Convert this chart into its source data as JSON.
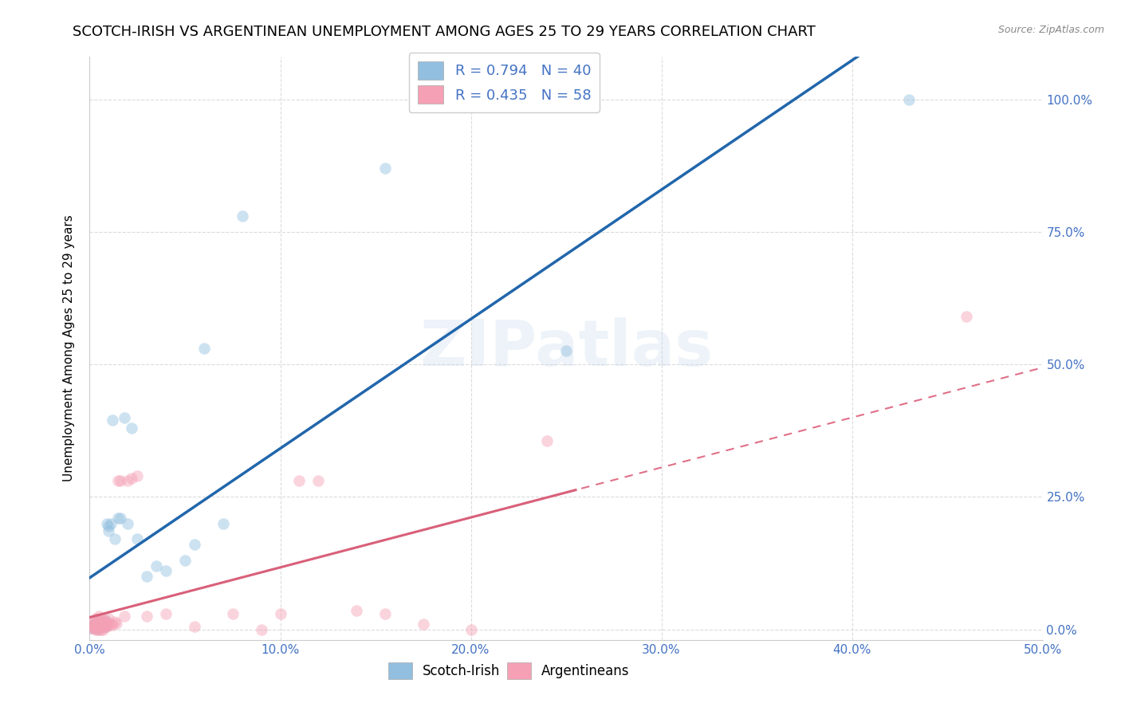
{
  "title": "SCOTCH-IRISH VS ARGENTINEAN UNEMPLOYMENT AMONG AGES 25 TO 29 YEARS CORRELATION CHART",
  "source": "Source: ZipAtlas.com",
  "ylabel": "Unemployment Among Ages 25 to 29 years",
  "xlim": [
    0.0,
    0.5
  ],
  "ylim": [
    -0.02,
    1.08
  ],
  "xticks": [
    0.0,
    0.1,
    0.2,
    0.3,
    0.4,
    0.5
  ],
  "xticklabels": [
    "0.0%",
    "10.0%",
    "20.0%",
    "30.0%",
    "40.0%",
    "50.0%"
  ],
  "yticks": [
    0.0,
    0.25,
    0.5,
    0.75,
    1.0
  ],
  "yticklabels": [
    "0.0%",
    "25.0%",
    "50.0%",
    "75.0%",
    "100.0%"
  ],
  "watermark": "ZIPatlas",
  "scotch_irish_x": [
    0.001,
    0.002,
    0.002,
    0.003,
    0.003,
    0.003,
    0.004,
    0.004,
    0.004,
    0.005,
    0.005,
    0.006,
    0.006,
    0.007,
    0.007,
    0.008,
    0.008,
    0.009,
    0.01,
    0.01,
    0.011,
    0.012,
    0.013,
    0.015,
    0.016,
    0.018,
    0.02,
    0.022,
    0.025,
    0.03,
    0.035,
    0.04,
    0.05,
    0.055,
    0.06,
    0.07,
    0.08,
    0.155,
    0.25,
    0.43
  ],
  "scotch_irish_y": [
    0.003,
    0.005,
    0.008,
    0.003,
    0.01,
    0.015,
    0.003,
    0.008,
    0.015,
    0.003,
    0.01,
    0.005,
    0.015,
    0.005,
    0.012,
    0.005,
    0.018,
    0.2,
    0.185,
    0.195,
    0.2,
    0.395,
    0.17,
    0.21,
    0.21,
    0.4,
    0.2,
    0.38,
    0.17,
    0.1,
    0.12,
    0.11,
    0.13,
    0.16,
    0.53,
    0.2,
    0.78,
    0.87,
    0.525,
    1.0
  ],
  "argentinean_x": [
    0.001,
    0.001,
    0.002,
    0.002,
    0.002,
    0.003,
    0.003,
    0.003,
    0.003,
    0.003,
    0.004,
    0.004,
    0.004,
    0.004,
    0.005,
    0.005,
    0.005,
    0.005,
    0.005,
    0.005,
    0.006,
    0.006,
    0.006,
    0.006,
    0.007,
    0.007,
    0.007,
    0.007,
    0.008,
    0.008,
    0.009,
    0.009,
    0.01,
    0.01,
    0.011,
    0.012,
    0.013,
    0.014,
    0.015,
    0.016,
    0.018,
    0.02,
    0.022,
    0.025,
    0.03,
    0.04,
    0.055,
    0.075,
    0.09,
    0.1,
    0.11,
    0.12,
    0.14,
    0.155,
    0.175,
    0.2,
    0.24,
    0.46
  ],
  "argentinean_y": [
    0.003,
    0.008,
    0.003,
    0.008,
    0.015,
    0.0,
    0.005,
    0.008,
    0.012,
    0.02,
    0.0,
    0.005,
    0.01,
    0.018,
    0.0,
    0.005,
    0.008,
    0.012,
    0.018,
    0.025,
    0.0,
    0.005,
    0.01,
    0.018,
    0.0,
    0.005,
    0.012,
    0.02,
    0.005,
    0.015,
    0.005,
    0.015,
    0.008,
    0.02,
    0.01,
    0.008,
    0.015,
    0.012,
    0.28,
    0.28,
    0.025,
    0.28,
    0.285,
    0.29,
    0.025,
    0.03,
    0.005,
    0.03,
    0.0,
    0.03,
    0.28,
    0.28,
    0.035,
    0.03,
    0.01,
    0.0,
    0.355,
    0.59
  ],
  "scatter_size": 110,
  "scatter_alpha": 0.45,
  "scotch_irish_color": "#92bfdf",
  "argentinean_color": "#f5a0b5",
  "regression_scotch_color": "#2166ac",
  "regression_arg_color": "#e07088",
  "regression_arg_solid_color": "#d9607a",
  "background_color": "#ffffff",
  "grid_color": "#d8d8d8",
  "title_fontsize": 13,
  "axis_label_fontsize": 11,
  "tick_fontsize": 11,
  "tick_color": "#4472c4"
}
